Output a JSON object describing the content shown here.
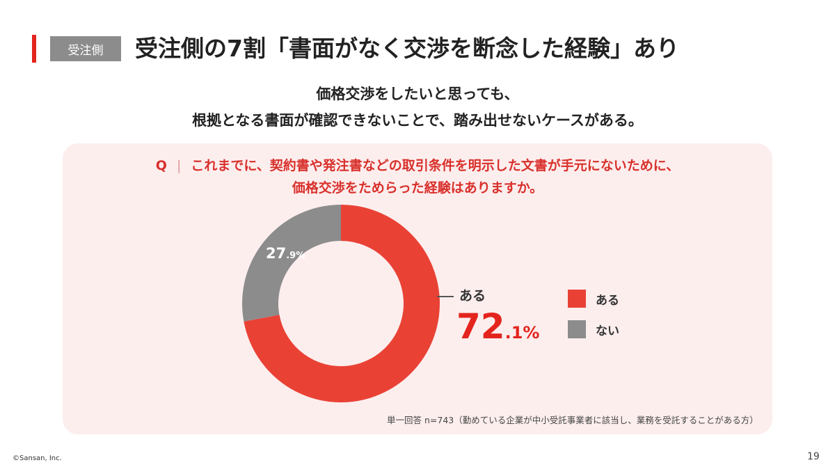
{
  "header": {
    "tag": "受注側",
    "title": "受注側の7割「書面がなく交渉を断念した経験」あり",
    "accent_color": "#e3251e",
    "tag_color": "#8c8c8c"
  },
  "subtitle": {
    "line1": "価格交渉をしたいと思っても、",
    "line2": "根拠となる書面が確認できないことで、踏み出せないケースがある。"
  },
  "question": {
    "mark": "Q",
    "separator": "|",
    "line1": "これまでに、契約書や発注書などの取引条件を明示した文書が手元にないために、",
    "line2": "価格交渉をためらった経験はありますか。"
  },
  "chart_data": {
    "type": "pie",
    "style": "donut",
    "categories": [
      "ある",
      "ない"
    ],
    "values": [
      72.1,
      27.9
    ],
    "colors": [
      "#e94235",
      "#8c8c8c"
    ],
    "unit": "%",
    "legend": "right",
    "labels": {
      "main": {
        "category": "ある",
        "integer": "72",
        "decimal": ".1%"
      },
      "minor": {
        "category": "ない",
        "integer": "27",
        "decimal": ".9%"
      }
    }
  },
  "note": "単一回答 n=743（勤めている企業が中小受託事業者に該当し、業務を受託することがある方）",
  "footer": {
    "copyright": "©Sansan, Inc.",
    "page": "19"
  }
}
